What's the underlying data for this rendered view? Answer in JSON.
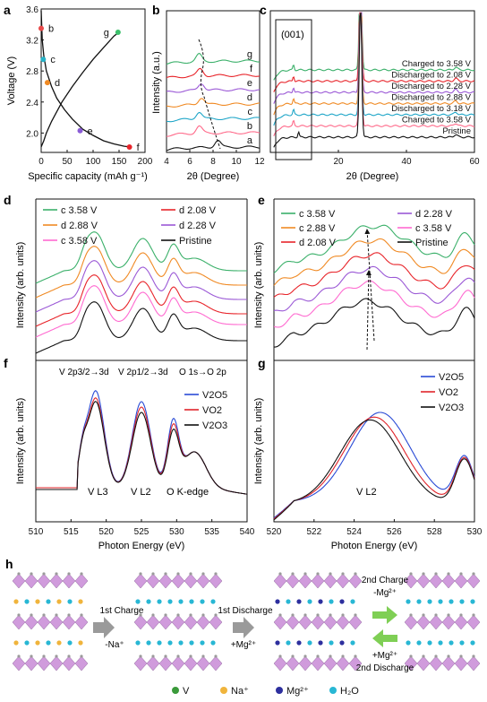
{
  "figure": {
    "panel_letters": {
      "a": "a",
      "b": "b",
      "c": "c",
      "d": "d",
      "e": "e",
      "f": "f",
      "g": "g",
      "h": "h"
    }
  },
  "chart_data": [
    {
      "panel": "a",
      "type": "line",
      "xlabel": "Specific capacity (mAh g⁻¹)",
      "ylabel": "Voltage (V)",
      "xlim": [
        0,
        200
      ],
      "ylim": [
        1.75,
        3.6
      ],
      "xticks": [
        "0",
        "50",
        "100",
        "150",
        "200"
      ],
      "yticks": [
        "2.0",
        "2.4",
        "2.8",
        "3.2",
        "3.6"
      ],
      "series": [
        {
          "name": "",
          "color": "#111111",
          "x": [
            0,
            2,
            5,
            10,
            20,
            30,
            45,
            60,
            80,
            100,
            120,
            140,
            160,
            172
          ],
          "y": [
            3.58,
            3.2,
            3.0,
            2.8,
            2.6,
            2.45,
            2.3,
            2.18,
            2.05,
            1.97,
            1.9,
            1.86,
            1.83,
            1.82
          ]
        },
        {
          "name": "",
          "color": "#111111",
          "x": [
            0,
            5,
            10,
            20,
            40,
            60,
            80,
            100,
            120,
            140,
            150
          ],
          "y": [
            1.82,
            1.9,
            2.0,
            2.15,
            2.4,
            2.6,
            2.78,
            2.95,
            3.1,
            3.25,
            3.3
          ]
        }
      ],
      "points": [
        {
          "label": "b",
          "x": 0,
          "y": 3.35,
          "color": "#e84a4a"
        },
        {
          "label": "c",
          "x": 4,
          "y": 2.95,
          "color": "#27b3c8"
        },
        {
          "label": "d",
          "x": 12,
          "y": 2.65,
          "color": "#f08a24"
        },
        {
          "label": "e",
          "x": 75,
          "y": 2.03,
          "color": "#8a5cd6"
        },
        {
          "label": "f",
          "x": 170,
          "y": 1.82,
          "color": "#e8242a"
        },
        {
          "label": "g",
          "x": 148,
          "y": 3.3,
          "color": "#3bbf6a"
        }
      ]
    },
    {
      "panel": "b",
      "type": "line",
      "xlabel": "2θ (Degree)",
      "ylabel": "Intensity (a.u.)",
      "xlim": [
        4,
        12
      ],
      "xticks": [
        "4",
        "6",
        "8",
        "10",
        "12"
      ],
      "series": [
        {
          "name": "g",
          "color": "#3bb06a"
        },
        {
          "name": "f",
          "color": "#e8242a"
        },
        {
          "name": "e",
          "color": "#9b59d6"
        },
        {
          "name": "d",
          "color": "#f08a24"
        },
        {
          "name": "c",
          "color": "#1fa6c8"
        },
        {
          "name": "b",
          "color": "#ff6a8a"
        },
        {
          "name": "a",
          "color": "#111111"
        }
      ],
      "peaks_2theta": [
        6.8,
        6.9,
        7.0,
        7.0,
        6.8,
        6.8,
        8.4
      ]
    },
    {
      "panel": "c",
      "type": "line",
      "xlabel": "2θ (Degree)",
      "xlim": [
        0,
        60
      ],
      "xticks": [
        "20",
        "40",
        "60"
      ],
      "annotation": "(001)",
      "series": [
        {
          "name": "Charged to 3.58 V",
          "color": "#3bb06a"
        },
        {
          "name": "Discharged to 2.08 V",
          "color": "#e8242a"
        },
        {
          "name": "Discharged to 2.28 V",
          "color": "#9b59d6"
        },
        {
          "name": "Discharged to 2.88 V",
          "color": "#f08a24"
        },
        {
          "name": "Discharged to 3.18 V",
          "color": "#1fa6c8"
        },
        {
          "name": "Charged to 3.58 V",
          "color": "#ff6a8a"
        },
        {
          "name": "Pristine",
          "color": "#111111"
        }
      ],
      "main_peak_2theta": 26.5
    },
    {
      "panel": "d",
      "type": "line",
      "ylabel": "Intensity (arb. units)",
      "legend": [
        {
          "label": "c 3.58 V",
          "color": "#3bb06a"
        },
        {
          "label": "d 2.08 V",
          "color": "#e8242a"
        },
        {
          "label": "d 2.88 V",
          "color": "#f08a24"
        },
        {
          "label": "d 2.28 V",
          "color": "#9b59d6"
        },
        {
          "label": "c 3.58 V",
          "color": "#ff6ad0"
        },
        {
          "label": "Pristine",
          "color": "#111111"
        }
      ]
    },
    {
      "panel": "e",
      "type": "line",
      "ylabel": "Intensity (arb. units)",
      "legend": [
        {
          "label": "c 3.58 V",
          "color": "#3bb06a"
        },
        {
          "label": "d 2.28 V",
          "color": "#9b59d6"
        },
        {
          "label": "c 2.88 V",
          "color": "#f08a24"
        },
        {
          "label": "c 3.58 V",
          "color": "#ff6ad0"
        },
        {
          "label": "d 2.08 V",
          "color": "#e8242a"
        },
        {
          "label": "Pristine",
          "color": "#111111"
        }
      ]
    },
    {
      "panel": "f",
      "type": "line",
      "xlabel": "Photon Energy (eV)",
      "ylabel": "Intensity (arb. units)",
      "xlim": [
        510,
        540
      ],
      "xticks": [
        "510",
        "515",
        "520",
        "525",
        "530",
        "535",
        "540"
      ],
      "annotations": [
        "V 2p3/2→3d",
        "V 2p1/2→3d",
        "O 1s→O 2p",
        "V L3",
        "V L2",
        "O K-edge"
      ],
      "series": [
        {
          "name": "V2O5",
          "color": "#2a4bd6"
        },
        {
          "name": "VO2",
          "color": "#e0242a"
        },
        {
          "name": "V2O3",
          "color": "#111111"
        }
      ],
      "peaks_eV": [
        518.5,
        525.0,
        529.5
      ]
    },
    {
      "panel": "g",
      "type": "line",
      "xlabel": "Photon Energy (eV)",
      "ylabel": "Intensity (arb. units)",
      "xlim": [
        520,
        530
      ],
      "xticks": [
        "520",
        "522",
        "524",
        "526",
        "528",
        "530"
      ],
      "annotation": "V L2",
      "series": [
        {
          "name": "V2O5",
          "color": "#2a4bd6"
        },
        {
          "name": "VO2",
          "color": "#e0242a"
        },
        {
          "name": "V2O3",
          "color": "#111111"
        }
      ]
    }
  ],
  "schematic": {
    "arrows": [
      {
        "top": "1st Charge",
        "bottom": "-Na⁺"
      },
      {
        "top": "1st Discharge",
        "bottom": "+Mg²⁺"
      },
      {
        "top": "2nd Charge",
        "sub_top": "-Mg²⁺",
        "sub_bottom": "+Mg²⁺",
        "bottom": "2nd Discharge"
      }
    ],
    "legend": [
      {
        "label": "V",
        "color": "#3a9a3a"
      },
      {
        "label": "Na⁺",
        "color": "#f0b43c"
      },
      {
        "label": "Mg²⁺",
        "color": "#2d2f9e"
      },
      {
        "label": "H₂O",
        "color": "#28b7d4"
      }
    ],
    "colors": {
      "octahedra": "#c88ad6",
      "oxygen": "#9a9a9a",
      "arrow": "#9a9a9a",
      "arrow_green": "#7fcf55"
    }
  }
}
